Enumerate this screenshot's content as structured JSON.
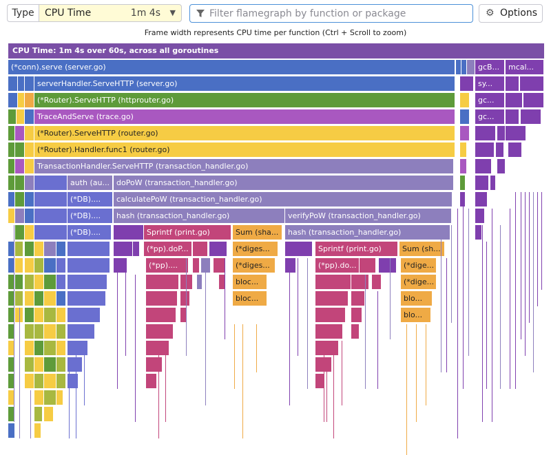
{
  "toolbar": {
    "type_label": "Type",
    "type_value": "CPU Time",
    "type_meta": "1m 4s",
    "filter_placeholder": "Filter flamegraph by function or package",
    "options_label": "Options",
    "icons": [
      "chevron-down-icon",
      "filter-icon",
      "gear-icon"
    ]
  },
  "hint": "Frame width represents CPU time per function (Ctrl + Scroll to zoom)",
  "flamegraph": {
    "root_label": "CPU Time: 1m 4s over 60s, across all goroutines",
    "colors": {
      "blue": "#4a6fc4",
      "green": "#5e9b3a",
      "magenta": "#a958c0",
      "yellow": "#f6cc44",
      "lavender": "#8d7fbd",
      "purple": "#7f3fae",
      "pink": "#c2457a",
      "orange": "#efaa45",
      "periwinkle": "#6a6fd0",
      "olive": "#a8b840"
    }
  },
  "frames": [
    {
      "label": "(*conn).serve (server.go)"
    },
    {
      "label": "gcB..."
    },
    {
      "label": "mcal..."
    },
    {
      "label": "serverHandler.ServeHTTP (server.go)"
    },
    {
      "label": "sy..."
    },
    {
      "label": "(*Router).ServeHTTP (httprouter.go)"
    },
    {
      "label": "gc..."
    },
    {
      "label": "TraceAndServe (trace.go)"
    },
    {
      "label": "gc..."
    },
    {
      "label": "(*Router).ServeHTTP (router.go)"
    },
    {
      "label": "(*Router).Handler.func1 (router.go)"
    },
    {
      "label": "TransactionHandler.ServeHTTP (transaction_handler.go)"
    },
    {
      "label": "auth (au..."
    },
    {
      "label": "doPoW (transaction_handler.go)"
    },
    {
      "label": "(*DB)...."
    },
    {
      "label": "calculatePoW (transaction_handler.go)"
    },
    {
      "label": "(*DB)...."
    },
    {
      "label": "hash (transaction_handler.go)"
    },
    {
      "label": "verifyPoW (transaction_handler.go)"
    },
    {
      "label": "(*DB)...."
    },
    {
      "label": "Sprintf (print.go)"
    },
    {
      "label": "Sum (sha..."
    },
    {
      "label": "hash (transaction_handler.go)"
    },
    {
      "label": "(*pp).doP..."
    },
    {
      "label": "(*diges..."
    },
    {
      "label": "Sprintf (print.go)"
    },
    {
      "label": "Sum (sh..."
    },
    {
      "label": "(*pp)...."
    },
    {
      "label": "(*diges..."
    },
    {
      "label": "(*pp).do..."
    },
    {
      "label": "(*dige..."
    },
    {
      "label": "bloc..."
    },
    {
      "label": "(*dige..."
    },
    {
      "label": "bloc..."
    },
    {
      "label": "blo..."
    },
    {
      "label": "blo..."
    }
  ]
}
